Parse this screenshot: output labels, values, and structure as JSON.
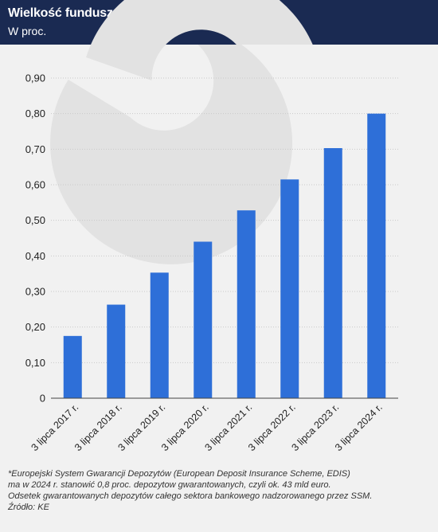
{
  "header": {
    "title": "Wielkość funduszu gwarancji EDIS*",
    "subtitle": "W proc."
  },
  "colors": {
    "header_bg": "#1a2a52",
    "bar": "#2e6fd8",
    "watermark": "#e2e2e2"
  },
  "icons": {
    "watermark": "logo-watermark-icon"
  },
  "chart_data": {
    "type": "bar",
    "title": "",
    "xlabel": "",
    "ylabel": "",
    "categories": [
      "3 lipca 2017 r.",
      "3 lipca 2018 r.",
      "3 lipca 2019 r.",
      "3 lipca 2020 r.",
      "3 lipca 2021 r.",
      "3 lipca 2022 r.",
      "3 lipca 2023 r.",
      "3 lipca 2024 r."
    ],
    "values": [
      0.175,
      0.263,
      0.353,
      0.44,
      0.528,
      0.615,
      0.703,
      0.8
    ],
    "ylim": [
      0,
      0.9
    ],
    "yticks": [
      0,
      0.1,
      0.2,
      0.3,
      0.4,
      0.5,
      0.6,
      0.7,
      0.8,
      0.9
    ],
    "ytick_labels": [
      "0",
      "0,10",
      "0,20",
      "0,30",
      "0,40",
      "0,50",
      "0,60",
      "0,70",
      "0,80",
      "0,90"
    ],
    "grid": true,
    "legend": "none"
  },
  "footnote": {
    "lines": [
      "*Europejski System Gwarancji Depozytów (European Deposit Insurance Scheme, EDIS)",
      "ma w 2024 r. stanowić 0,8 proc. depozytow gwarantowanych, czyli ok. 43 mld euro.",
      "Odsetek gwarantowanych depozytów całego sektora bankowego nadzorowanego przez SSM.",
      "Źródło: KE"
    ]
  }
}
